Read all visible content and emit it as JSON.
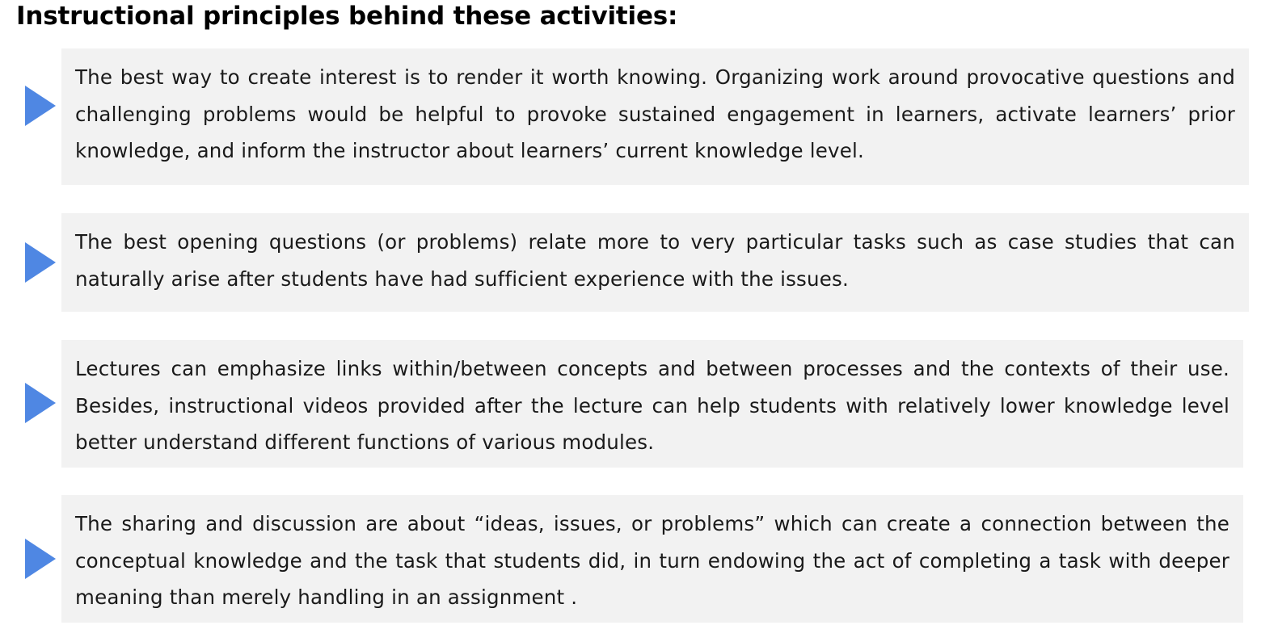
{
  "heading": "Instructional principles behind these activities:",
  "principles": [
    {
      "icon": "triangle-right-icon",
      "text": "The best way to create interest is to render it worth knowing. Organizing work around provocative questions and challenging problems would be helpful to provoke sustained engagement in learners, activate learners’ prior knowledge, and inform the instructor about learners’ current knowledge level."
    },
    {
      "icon": "triangle-right-icon",
      "text": "The best opening questions (or problems) relate more to very particular tasks such as case studies that can naturally arise after students have had sufficient experience with the issues."
    },
    {
      "icon": "triangle-right-icon",
      "text": "Lectures can emphasize links within/between concepts and between processes and the contexts of their use. Besides, instructional videos provided after the lecture can help students with relatively lower knowledge level better understand different functions of various modules."
    },
    {
      "icon": "triangle-right-icon",
      "text": "The sharing and discussion are about “ideas, issues, or problems” which can create a connection between the conceptual knowledge and the task that students did, in turn endowing the act of completing a task with deeper meaning than merely handling in an assignment ."
    }
  ],
  "colors": {
    "arrow": "#4f87e3",
    "box_background": "#f2f2f2",
    "text": "#1a1a1a"
  }
}
